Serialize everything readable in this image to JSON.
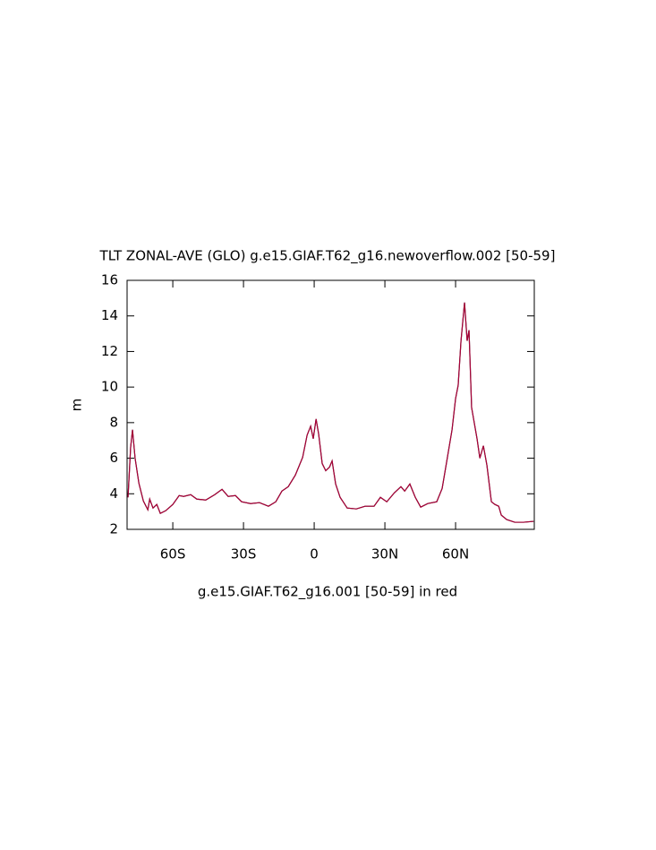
{
  "chart_data": {
    "type": "line",
    "title": "TLT ZONAL-AVE (GLO) g.e15.GIAF.T62_g16.newoverflow.002 [50-59]",
    "y_label": "m",
    "x_label": "g.e15.GIAF.T62_g16.001 [50-59] in red",
    "x": [
      -79,
      -77.9,
      -77.1,
      -76,
      -74.4,
      -72.5,
      -70.6,
      -69.8,
      -68.4,
      -66.8,
      -65.3,
      -63,
      -60,
      -57.3,
      -55.4,
      -52.4,
      -49.8,
      -46,
      -42.2,
      -39.1,
      -36.5,
      -33.4,
      -30.8,
      -27,
      -23.2,
      -19.4,
      -16.3,
      -13.7,
      -11,
      -8,
      -4.9,
      -3,
      -1.5,
      -0.4,
      0.8,
      1.9,
      3.4,
      4.9,
      6.5,
      7.6,
      9.1,
      11,
      14,
      17.9,
      21.6,
      25.4,
      28.1,
      30.8,
      34,
      36.8,
      38.4,
      40.6,
      42.9,
      45.2,
      48.2,
      52,
      54.3,
      56.6,
      58.5,
      60,
      61.1,
      62.3,
      63.8,
      64.9,
      65.7,
      66.8,
      69.1,
      70.3,
      71.8,
      73.3,
      75.2,
      76.7,
      78.3,
      79.4,
      81.7,
      85.1,
      88.9,
      93.1
    ],
    "series": [
      {
        "color": "#000000",
        "values": [
          3.8,
          6.6,
          7.6,
          6.0,
          4.6,
          3.6,
          3.1,
          3.7,
          3.2,
          3.4,
          2.9,
          3.05,
          3.4,
          3.9,
          3.85,
          3.95,
          3.7,
          3.65,
          3.95,
          4.25,
          3.85,
          3.9,
          3.55,
          3.45,
          3.5,
          3.3,
          3.55,
          4.15,
          4.4,
          5.05,
          6.05,
          7.3,
          7.8,
          7.1,
          8.2,
          7.35,
          5.7,
          5.3,
          5.5,
          5.85,
          4.55,
          3.8,
          3.2,
          3.15,
          3.3,
          3.3,
          3.8,
          3.55,
          4.05,
          4.4,
          4.15,
          4.55,
          3.8,
          3.25,
          3.45,
          3.55,
          4.3,
          6.1,
          7.6,
          9.35,
          10.1,
          12.6,
          14.75,
          12.6,
          13.2,
          8.85,
          7.1,
          6.0,
          6.7,
          5.6,
          3.55,
          3.4,
          3.3,
          2.8,
          2.55,
          2.4,
          2.4,
          2.45
        ]
      },
      {
        "color": "#e0004a",
        "values": [
          3.8,
          6.6,
          7.6,
          6.0,
          4.6,
          3.6,
          3.1,
          3.7,
          3.2,
          3.4,
          2.9,
          3.05,
          3.4,
          3.9,
          3.85,
          3.95,
          3.7,
          3.65,
          3.95,
          4.25,
          3.85,
          3.9,
          3.55,
          3.45,
          3.5,
          3.3,
          3.55,
          4.15,
          4.4,
          5.05,
          6.05,
          7.3,
          7.8,
          7.1,
          8.2,
          7.35,
          5.7,
          5.3,
          5.5,
          5.85,
          4.55,
          3.8,
          3.2,
          3.15,
          3.3,
          3.3,
          3.8,
          3.55,
          4.05,
          4.4,
          4.15,
          4.55,
          3.8,
          3.25,
          3.45,
          3.55,
          4.3,
          6.1,
          7.6,
          9.35,
          10.1,
          12.6,
          14.75,
          12.6,
          13.2,
          8.85,
          7.1,
          6.0,
          6.7,
          5.6,
          3.55,
          3.4,
          3.3,
          2.8,
          2.55,
          2.4,
          2.4,
          2.45
        ]
      }
    ],
    "xlim": [
      -79.4,
      93.4
    ],
    "xticks": [
      {
        "value": -60,
        "label": "60S"
      },
      {
        "value": -30,
        "label": "30S"
      },
      0,
      {
        "value": 30,
        "label": "30N"
      },
      {
        "value": 60,
        "label": "60N"
      }
    ],
    "ylim": [
      2,
      16
    ],
    "yticks": [
      2,
      4,
      6,
      8,
      10,
      12,
      14,
      16
    ]
  }
}
